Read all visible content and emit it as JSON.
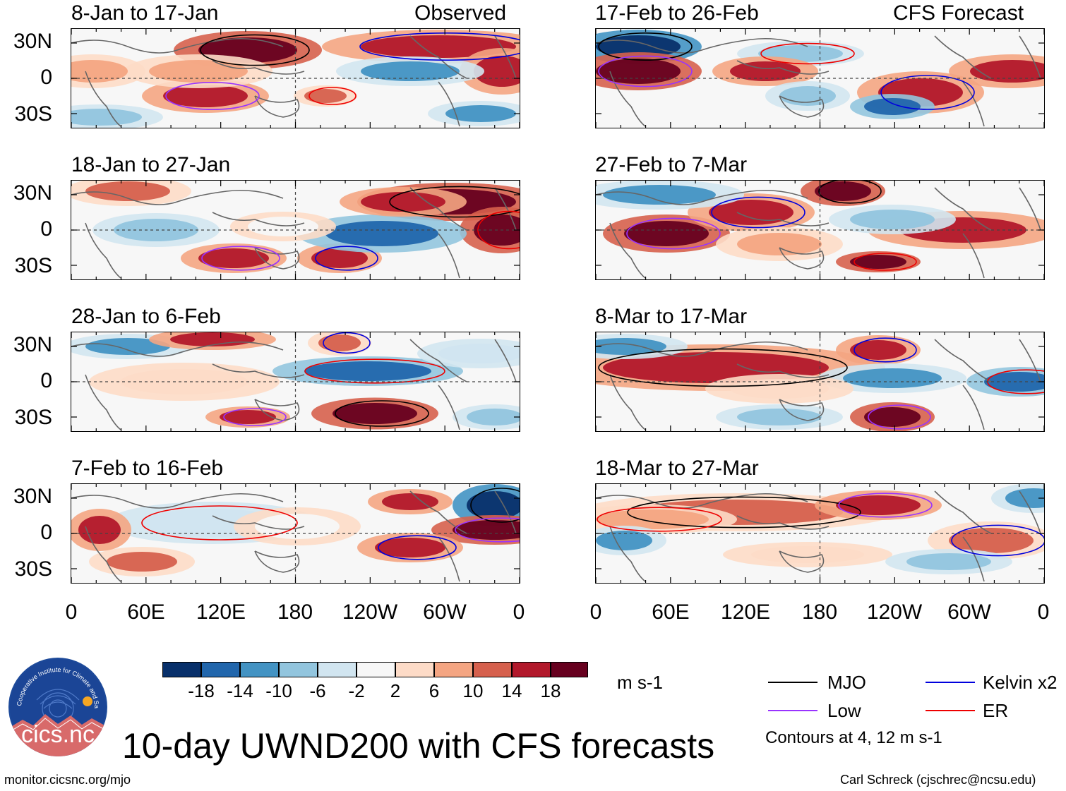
{
  "figure": {
    "title": "10-day UWND200 with CFS forecasts",
    "units": "m s-1",
    "source_url": "monitor.cicsnc.org/mjo",
    "credit": "Carl Schreck (cjschrec@ncsu.edu)",
    "logo": {
      "text": "cics.nc",
      "ring_text": "Cooperative Institute for Climate and Satellites"
    }
  },
  "headers": {
    "left": "Observed",
    "right": "CFS Forecast"
  },
  "chart_data": {
    "type": "heatmap",
    "variable": "200-hPa zonal wind anomaly",
    "ytick_labels": [
      "30N",
      "0",
      "30S"
    ],
    "xtick_labels": [
      "0",
      "60E",
      "120E",
      "180",
      "120W",
      "60W",
      "0"
    ],
    "panels": [
      {
        "title": "8-Jan to 17-Jan",
        "kind": "observed"
      },
      {
        "title": "18-Jan to 27-Jan",
        "kind": "observed"
      },
      {
        "title": "28-Jan to 6-Feb",
        "kind": "observed"
      },
      {
        "title": "7-Feb to 16-Feb",
        "kind": "observed"
      },
      {
        "title": "17-Feb to 26-Feb",
        "kind": "forecast"
      },
      {
        "title": "27-Feb to 7-Mar",
        "kind": "forecast"
      },
      {
        "title": "8-Mar to 17-Mar",
        "kind": "forecast"
      },
      {
        "title": "18-Mar to 27-Mar",
        "kind": "forecast"
      }
    ],
    "colorbar": {
      "labels": [
        "-18",
        "-14",
        "-10",
        "-6",
        "-2",
        "2",
        "6",
        "10",
        "14",
        "18"
      ],
      "colors": [
        "#08306b",
        "#2166ac",
        "#4393c3",
        "#92c5de",
        "#d1e5f0",
        "#f7f7f7",
        "#fddbc7",
        "#f4a582",
        "#d6604d",
        "#b2182b",
        "#67001f"
      ]
    },
    "legend": {
      "items": [
        {
          "label": "MJO",
          "color": "#000000"
        },
        {
          "label": "Kelvin x2",
          "color": "#0000dd"
        },
        {
          "label": "Low",
          "color": "#9933ff"
        },
        {
          "label": "ER",
          "color": "#ee0000"
        }
      ],
      "note": "Contours at 4, 12 m s-1"
    }
  }
}
